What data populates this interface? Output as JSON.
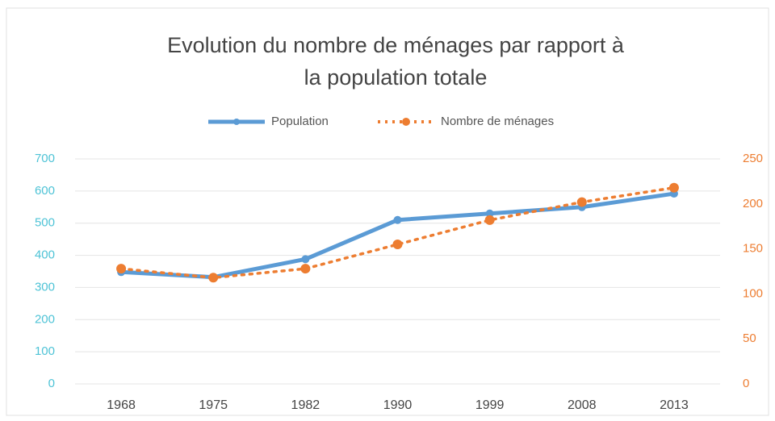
{
  "chart_data": {
    "type": "line",
    "title": [
      "Evolution du nombre de ménages par rapport à",
      "la population totale"
    ],
    "categories": [
      "1968",
      "1975",
      "1982",
      "1990",
      "1999",
      "2008",
      "2013"
    ],
    "series": [
      {
        "name": "Population",
        "color": "#5b9bd5",
        "values": [
          348,
          332,
          388,
          510,
          530,
          550,
          592
        ]
      },
      {
        "name": "Nombre de ménages",
        "color": "#ed7d31",
        "axis": "y2",
        "values": [
          128,
          118,
          128,
          155,
          182,
          202,
          218
        ]
      }
    ],
    "ylim": [
      0,
      700
    ],
    "yticks": [
      0,
      100,
      200,
      300,
      400,
      500,
      600,
      700
    ],
    "y2lim": [
      0,
      250
    ],
    "y2ticks": [
      0,
      50,
      100,
      150,
      200,
      250
    ],
    "grid": true,
    "legend": "top"
  }
}
